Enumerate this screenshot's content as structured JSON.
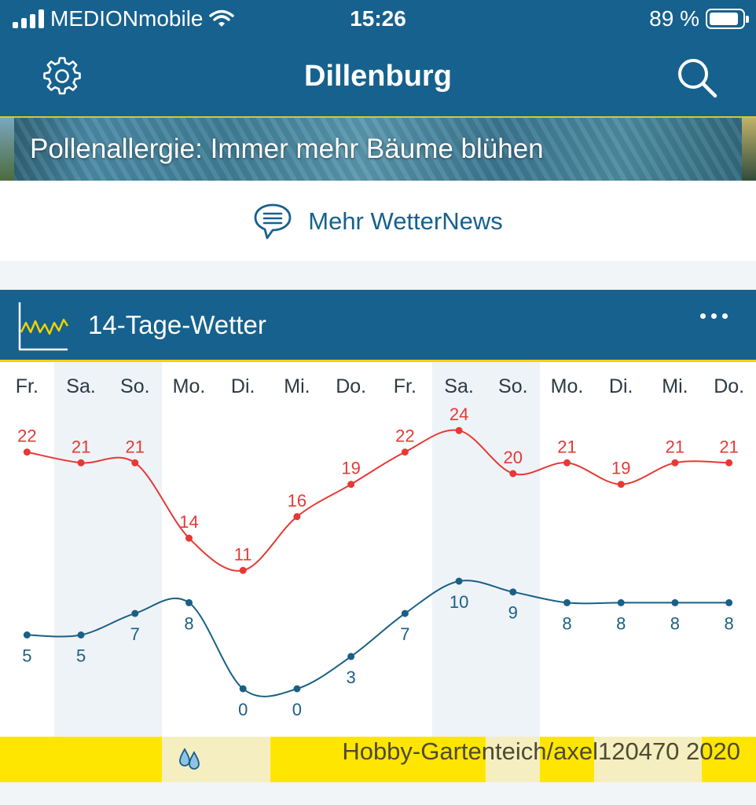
{
  "status_bar": {
    "carrier": "MEDIONmobile",
    "time": "15:26",
    "battery_text": "89 %",
    "battery_level": 0.89
  },
  "nav": {
    "title": "Dillenburg",
    "settings_icon": "gear-icon",
    "search_icon": "search-icon"
  },
  "banner": {
    "headline": "Pollenallergie: Immer mehr Bäume blühen"
  },
  "news_link": {
    "label": "Mehr WetterNews",
    "icon": "speech-bubble-icon"
  },
  "widget": {
    "title": "14-Tage-Wetter",
    "icon": "chart-line-icon",
    "more_icon": "more-dots-icon"
  },
  "chart_data": {
    "type": "line",
    "categories": [
      "Fr.",
      "Sa.",
      "So.",
      "Mo.",
      "Di.",
      "Mi.",
      "Do.",
      "Fr.",
      "Sa.",
      "So.",
      "Mo.",
      "Di.",
      "Mi.",
      "Do."
    ],
    "series": [
      {
        "values": [
          22,
          21,
          21,
          14,
          11,
          16,
          19,
          22,
          24,
          20,
          21,
          19,
          21,
          21
        ],
        "color": "#e53935"
      },
      {
        "values": [
          5,
          5,
          7,
          8,
          0,
          0,
          3,
          7,
          10,
          9,
          8,
          8,
          8,
          8
        ],
        "color": "#1a5f86"
      }
    ],
    "weekend_shaded_columns": [
      1,
      2,
      8,
      9
    ],
    "grid": false,
    "legend": "none"
  },
  "rain_strip": {
    "precip_icon_day": 3,
    "light_columns": [
      3,
      4,
      9,
      11,
      12
    ],
    "credit": "Hobby-Gartenteich/axel120470 2020"
  },
  "colors": {
    "brand_blue": "#16618e",
    "accent_yellow": "#ffe600",
    "high_temp": "#e53935",
    "low_temp": "#1a5f86"
  }
}
